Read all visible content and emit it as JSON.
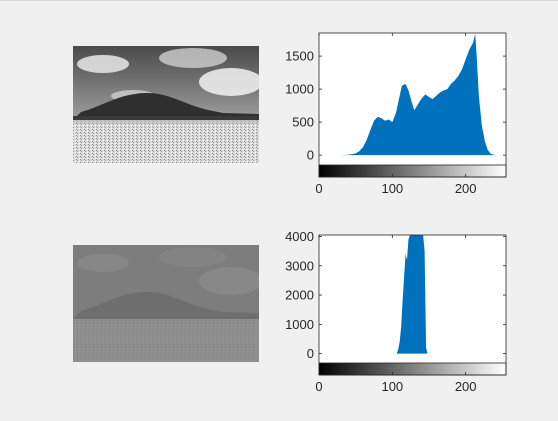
{
  "images": [
    {
      "name": "original-grayscale-image",
      "contrast": "full"
    },
    {
      "name": "low-contrast-grayscale-image",
      "contrast": "reduced"
    }
  ],
  "chart_data": [
    {
      "type": "area",
      "title": "",
      "xlabel": "",
      "ylabel": "",
      "xlim": [
        0,
        255
      ],
      "ylim": [
        -150,
        1850
      ],
      "x_ticks": [
        0,
        100,
        200
      ],
      "y_ticks": [
        0,
        500,
        1000,
        1500
      ],
      "series_color": "#0072bd",
      "colorbar": "gray",
      "x": [
        0,
        30,
        40,
        50,
        55,
        60,
        65,
        70,
        75,
        80,
        85,
        90,
        95,
        100,
        105,
        110,
        113,
        118,
        122,
        126,
        130,
        135,
        140,
        145,
        150,
        155,
        160,
        165,
        170,
        175,
        180,
        185,
        190,
        195,
        200,
        205,
        210,
        213,
        215,
        218,
        222,
        226,
        230,
        234,
        240,
        255
      ],
      "values": [
        0,
        0,
        5,
        25,
        60,
        120,
        230,
        380,
        520,
        580,
        560,
        520,
        540,
        500,
        640,
        900,
        1050,
        1080,
        980,
        820,
        680,
        770,
        860,
        920,
        880,
        850,
        900,
        950,
        980,
        1000,
        1080,
        1130,
        1200,
        1300,
        1450,
        1600,
        1700,
        1840,
        1500,
        900,
        450,
        220,
        80,
        20,
        0,
        0
      ]
    },
    {
      "type": "area",
      "title": "",
      "xlabel": "",
      "ylabel": "",
      "xlim": [
        0,
        255
      ],
      "ylim": [
        -320,
        4050
      ],
      "x_ticks": [
        0,
        100,
        200
      ],
      "y_ticks": [
        0,
        1000,
        2000,
        3000,
        4000
      ],
      "series_color": "#0072bd",
      "colorbar": "gray",
      "x": [
        0,
        106,
        108,
        110,
        112,
        114,
        116,
        118,
        120,
        122,
        124,
        126,
        128,
        130,
        132,
        134,
        136,
        138,
        140,
        142,
        144,
        146,
        148,
        255
      ],
      "values": [
        0,
        0,
        150,
        400,
        900,
        1800,
        2600,
        3400,
        3200,
        3900,
        4050,
        4050,
        4050,
        4050,
        4050,
        4050,
        4050,
        4050,
        4050,
        4050,
        3500,
        200,
        0,
        0
      ]
    }
  ]
}
